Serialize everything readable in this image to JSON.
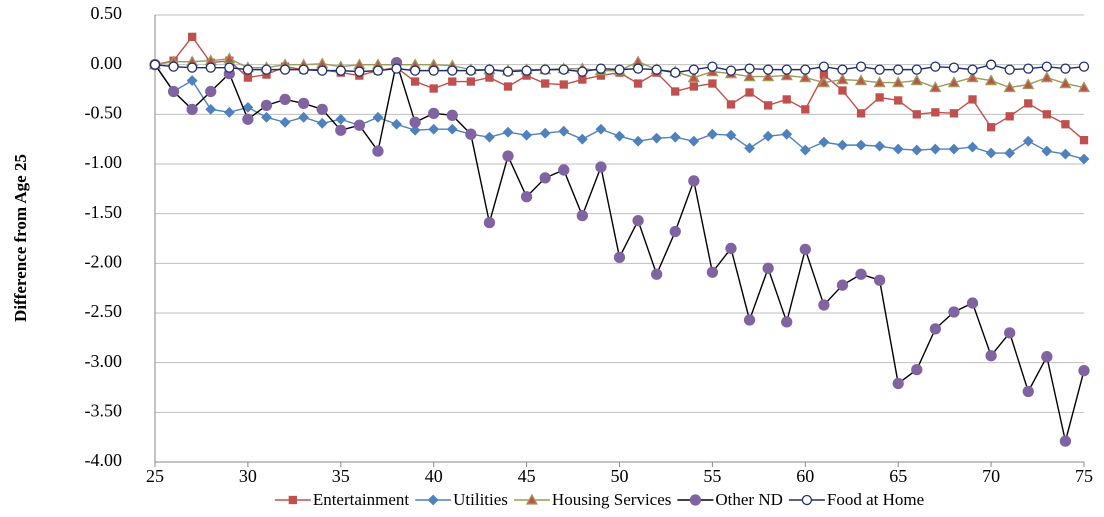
{
  "chart_data": {
    "type": "line",
    "y_label": "Difference from Age 25",
    "x": [
      25,
      26,
      27,
      28,
      29,
      30,
      31,
      32,
      33,
      34,
      35,
      36,
      37,
      38,
      39,
      40,
      41,
      42,
      43,
      44,
      45,
      46,
      47,
      48,
      49,
      50,
      51,
      52,
      53,
      54,
      55,
      56,
      57,
      58,
      59,
      60,
      61,
      62,
      63,
      64,
      65,
      66,
      67,
      68,
      69,
      70,
      71,
      72,
      73,
      74,
      75
    ],
    "xlim": [
      25,
      75
    ],
    "xticks": [
      25,
      30,
      35,
      40,
      45,
      50,
      55,
      60,
      65,
      70,
      75
    ],
    "ylim": [
      -4,
      0.5
    ],
    "yticks": [
      {
        "value": 0.5,
        "label": "0.50"
      },
      {
        "value": 0,
        "label": "0.00"
      },
      {
        "value": -0.5,
        "label": "-0.50"
      },
      {
        "value": -1,
        "label": "-1.00"
      },
      {
        "value": -1.5,
        "label": "-1.50"
      },
      {
        "value": -2,
        "label": "-2.00"
      },
      {
        "value": -2.5,
        "label": "-2.50"
      },
      {
        "value": -3,
        "label": "-3.00"
      },
      {
        "value": -3.5,
        "label": "-3.50"
      },
      {
        "value": -4,
        "label": "-4.00"
      }
    ],
    "grid": true,
    "legend": "bottom",
    "series": [
      {
        "name": "Entertainment",
        "color": "#c0504d",
        "line_color": "#c0504d",
        "marker": "square",
        "values": [
          0,
          0.04,
          0.28,
          0.02,
          0.04,
          -0.13,
          -0.1,
          -0.02,
          -0.05,
          -0.05,
          -0.08,
          -0.11,
          -0.06,
          -0.03,
          -0.17,
          -0.24,
          -0.17,
          -0.17,
          -0.13,
          -0.22,
          -0.11,
          -0.19,
          -0.2,
          -0.15,
          -0.11,
          -0.08,
          -0.19,
          -0.08,
          -0.27,
          -0.22,
          -0.19,
          -0.4,
          -0.28,
          -0.41,
          -0.35,
          -0.45,
          -0.1,
          -0.26,
          -0.49,
          -0.33,
          -0.36,
          -0.5,
          -0.48,
          -0.49,
          -0.35,
          -0.63,
          -0.52,
          -0.39,
          -0.5,
          -0.6,
          -0.76
        ]
      },
      {
        "name": "Utilities",
        "color": "#4f81bd",
        "line_color": "#4f81bd",
        "marker": "diamond",
        "values": [
          0,
          -0.27,
          -0.16,
          -0.45,
          -0.48,
          -0.43,
          -0.53,
          -0.58,
          -0.53,
          -0.59,
          -0.55,
          -0.61,
          -0.53,
          -0.6,
          -0.66,
          -0.65,
          -0.65,
          -0.7,
          -0.73,
          -0.68,
          -0.71,
          -0.69,
          -0.67,
          -0.75,
          -0.65,
          -0.72,
          -0.77,
          -0.74,
          -0.73,
          -0.77,
          -0.7,
          -0.71,
          -0.84,
          -0.72,
          -0.7,
          -0.86,
          -0.78,
          -0.81,
          -0.81,
          -0.82,
          -0.85,
          -0.86,
          -0.85,
          -0.85,
          -0.83,
          -0.89,
          -0.89,
          -0.77,
          -0.87,
          -0.9,
          -0.95
        ]
      },
      {
        "name": "Housing Services",
        "color": "#c0504d",
        "line_color": "#9b9b5a",
        "marker": "triangle",
        "values": [
          0,
          0.03,
          0.03,
          0.04,
          0.06,
          -0.03,
          -0.03,
          0,
          0,
          0.01,
          -0.02,
          0,
          0,
          0,
          0,
          0,
          -0.01,
          -0.05,
          -0.05,
          -0.06,
          -0.05,
          -0.05,
          -0.04,
          -0.04,
          -0.06,
          -0.06,
          0.03,
          -0.05,
          -0.07,
          -0.13,
          -0.07,
          -0.09,
          -0.12,
          -0.12,
          -0.11,
          -0.13,
          -0.18,
          -0.15,
          -0.16,
          -0.18,
          -0.18,
          -0.16,
          -0.23,
          -0.18,
          -0.13,
          -0.16,
          -0.23,
          -0.2,
          -0.13,
          -0.19,
          -0.23
        ]
      },
      {
        "name": "Other ND",
        "color": "#8064a2",
        "line_color": "#000000",
        "marker": "circle",
        "values": [
          0,
          -0.27,
          -0.45,
          -0.27,
          -0.09,
          -0.55,
          -0.41,
          -0.35,
          -0.39,
          -0.45,
          -0.66,
          -0.61,
          -0.87,
          0.02,
          -0.58,
          -0.49,
          -0.51,
          -0.7,
          -1.59,
          -0.92,
          -1.33,
          -1.14,
          -1.06,
          -1.52,
          -1.03,
          -1.94,
          -1.57,
          -2.11,
          -1.68,
          -1.17,
          -2.09,
          -1.85,
          -2.57,
          -2.05,
          -2.59,
          -1.86,
          -2.42,
          -2.22,
          -2.11,
          -2.17,
          -3.21,
          -3.07,
          -2.66,
          -2.49,
          -2.4,
          -2.93,
          -2.7,
          -3.29,
          -2.94,
          -3.79,
          -3.08
        ]
      },
      {
        "name": "Food at Home",
        "color": "#ffffff",
        "line_color": "#1f2d6b",
        "marker": "open-circle",
        "values": [
          0,
          -0.02,
          -0.03,
          -0.03,
          -0.03,
          -0.05,
          -0.05,
          -0.05,
          -0.05,
          -0.06,
          -0.06,
          -0.07,
          -0.06,
          -0.04,
          -0.06,
          -0.06,
          -0.06,
          -0.06,
          -0.05,
          -0.07,
          -0.06,
          -0.05,
          -0.05,
          -0.07,
          -0.04,
          -0.05,
          -0.04,
          -0.05,
          -0.08,
          -0.05,
          -0.02,
          -0.06,
          -0.04,
          -0.05,
          -0.05,
          -0.05,
          -0.02,
          -0.05,
          -0.02,
          -0.05,
          -0.05,
          -0.05,
          -0.02,
          -0.03,
          -0.05,
          0,
          -0.05,
          -0.04,
          -0.02,
          -0.04,
          -0.02
        ]
      }
    ]
  }
}
